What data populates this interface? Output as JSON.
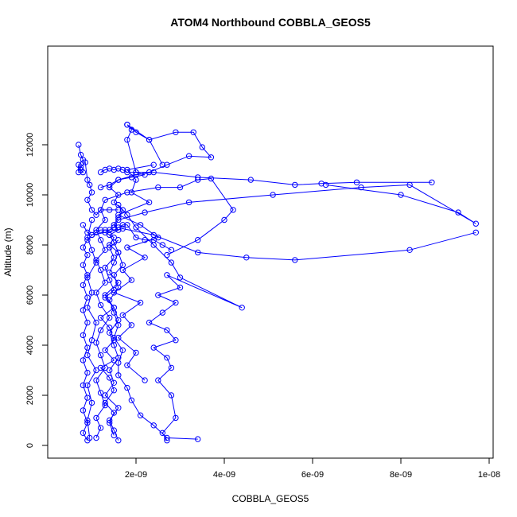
{
  "chart_data": {
    "type": "scatter",
    "title": "ATOM4 Northbound COBBLA_GEOS5",
    "xlabel": "COBBLA_GEOS5",
    "ylabel": "Altitude (m)",
    "xlim": [
      0,
      1e-08
    ],
    "ylim": [
      0,
      12800
    ],
    "x_ticks": [
      2e-09,
      4e-09,
      6e-09,
      8e-09,
      1e-08
    ],
    "x_tick_labels": [
      "2e-09",
      "4e-09",
      "6e-09",
      "8e-09",
      "1e-08"
    ],
    "y_ticks": [
      0,
      2000,
      4000,
      6000,
      8000,
      10000,
      12000
    ],
    "y_tick_labels": [
      "0",
      "2000",
      "4000",
      "6000",
      "8000",
      "10000",
      "12000"
    ],
    "grid": false,
    "legend": "none",
    "series_color": "#0000ff",
    "series": [
      {
        "x": [
          3.4e-09,
          2.7e-09,
          2.4e-09,
          2.1e-09,
          1.9e-09,
          1.8e-09,
          1.6e-09,
          1.6e-09,
          1.7e-09,
          1.5e-09,
          1.6e-09,
          1.5e-09,
          1.4e-09,
          1.6e-09,
          1.5e-09,
          1.7e-09,
          1.6e-09,
          1.5e-09,
          1.4e-09,
          1.6e-09,
          1.5e-09,
          1.6e-09,
          1.7e-09,
          1.5e-09,
          1.6e-09,
          1.4e-09,
          1.6e-09,
          2e-09,
          2.4e-09,
          3.4e-09,
          4.6e-09,
          5.6e-09,
          6.2e-09,
          7e-09,
          8.7e-09
        ],
        "y": [
          250,
          300,
          800,
          1200,
          1800,
          2300,
          2800,
          3300,
          3800,
          4300,
          4800,
          5300,
          5800,
          6300,
          6800,
          7200,
          7700,
          8100,
          8400,
          8600,
          8800,
          9100,
          9400,
          9700,
          10000,
          10300,
          10600,
          10800,
          10900,
          10700,
          10600,
          10400,
          10450,
          10500,
          10500
        ]
      },
      {
        "x": [
          1.6e-09,
          1.5e-09,
          1.4e-09,
          1.6e-09,
          1.3e-09,
          1.5e-09,
          1.4e-09,
          1.6e-09,
          1.5e-09,
          1.4e-09,
          1.6e-09,
          1.5e-09,
          1.3e-09,
          1.6e-09,
          1.4e-09,
          1.5e-09,
          1.6e-09,
          1.4e-09,
          1.5e-09,
          1.3e-09,
          1.5e-09,
          1.6e-09,
          2.2e-09,
          3.2e-09,
          5.1e-09,
          7.1e-09,
          8.2e-09,
          9.7e-09,
          9.3e-09,
          8e-09,
          6.3e-09
        ],
        "y": [
          200,
          600,
          1000,
          1500,
          2000,
          2500,
          3000,
          3500,
          4000,
          4500,
          5000,
          5500,
          6000,
          6500,
          6900,
          7300,
          7700,
          8000,
          8300,
          8500,
          8700,
          9000,
          9300,
          9700,
          10000,
          10300,
          10400,
          8850,
          9300,
          10000,
          10400
        ]
      },
      {
        "x": [
          9e-10,
          8e-10,
          9e-10,
          8e-10,
          9e-10,
          8e-10,
          9e-10,
          8e-10,
          9e-10,
          8e-10,
          9e-10,
          8e-10,
          9e-10,
          8e-10,
          9e-10,
          8e-10,
          9e-10,
          8e-10,
          9e-10,
          1e-09,
          1.3e-09,
          1.7e-09,
          2.4e-09,
          3.4e-09,
          4.5e-09,
          5.6e-09,
          8.2e-09,
          9.7e-09
        ],
        "y": [
          200,
          500,
          900,
          1400,
          1900,
          2400,
          2900,
          3400,
          3900,
          4400,
          4900,
          5400,
          5900,
          6400,
          6800,
          7200,
          7600,
          7900,
          8200,
          8400,
          8500,
          8650,
          8400,
          7700,
          7500,
          7400,
          7800,
          8500
        ]
      },
      {
        "x": [
          1.1e-09,
          1.2e-09,
          1.1e-09,
          1.3e-09,
          1.2e-09,
          1.1e-09,
          1.3e-09,
          1.2e-09,
          1.1e-09,
          1.2e-09,
          1.4e-09,
          1.2e-09,
          1.1e-09,
          1.3e-09,
          1.2e-09,
          1.1e-09,
          1.3e-09,
          1.2e-09,
          1.1e-09,
          1.3e-09,
          1.2e-09,
          1.3e-09,
          1.8e-09,
          2.5e-09,
          3e-09,
          3.4e-09,
          3.7e-09,
          4.2e-09,
          4e-09,
          3.4e-09,
          2.7e-09
        ],
        "y": [
          300,
          700,
          1100,
          1600,
          2100,
          2600,
          3100,
          3600,
          4100,
          4600,
          5100,
          5600,
          6100,
          6500,
          7000,
          7400,
          7800,
          8200,
          8600,
          9000,
          9400,
          9800,
          10100,
          10300,
          10300,
          10600,
          10650,
          9400,
          9000,
          8200,
          7600
        ]
      },
      {
        "x": [
          2.7e-09,
          2.6e-09,
          2.9e-09,
          2.8e-09,
          2.5e-09,
          2.8e-09,
          2.7e-09,
          2.4e-09,
          2.9e-09,
          2.7e-09,
          2.3e-09,
          2.6e-09,
          2.9e-09,
          2.5e-09,
          3e-09,
          2.7e-09,
          4.4e-09,
          3e-09,
          2.8e-09,
          2.4e-09,
          2e-09,
          1.8e-09,
          1.6e-09
        ],
        "y": [
          200,
          500,
          1100,
          2000,
          2600,
          3100,
          3500,
          3900,
          4200,
          4600,
          4900,
          5300,
          5700,
          6000,
          6300,
          6800,
          5500,
          6700,
          7300,
          8000,
          8700,
          9200,
          9600
        ]
      },
      {
        "x": [
          2.2e-09,
          1.8e-09,
          2e-09,
          1.6e-09,
          1.9e-09,
          1.7e-09,
          2.1e-09,
          1.5e-09,
          1.9e-09,
          1.7e-09,
          2.2e-09,
          1.8e-09,
          2.5e-09,
          2.1e-09,
          1.6e-09,
          2.3e-09,
          1.9e-09,
          2e-09,
          1.8e-09,
          2.4e-09
        ],
        "y": [
          2600,
          3200,
          3700,
          4300,
          4800,
          5200,
          5700,
          6100,
          6600,
          7000,
          7500,
          7900,
          8300,
          8800,
          9200,
          9700,
          10100,
          10600,
          11000,
          11200
        ]
      },
      {
        "x": [
          1.8e-09,
          2e-09,
          2.3e-09,
          2.9e-09,
          3.3e-09,
          3.5e-09,
          3.7e-09,
          3.2e-09,
          2.7e-09,
          2.3e-09,
          2e-09,
          1.8e-09,
          1.9e-09,
          1.8e-09,
          2.3e-09,
          2.6e-09
        ],
        "y": [
          12800,
          12500,
          12200,
          12500,
          12500,
          11900,
          11500,
          11550,
          11200,
          10900,
          10900,
          12200,
          12600,
          12800,
          12200,
          11200
        ]
      },
      {
        "x": [
          7e-10,
          7.5e-10,
          8e-10,
          7e-10,
          7.5e-10,
          8e-10,
          7e-10,
          7.5e-10,
          8.5e-10,
          9e-10,
          9.5e-10,
          1e-09,
          9e-10,
          1e-09,
          1.1e-09,
          1.2e-09,
          1.4e-09,
          1.6e-09
        ],
        "y": [
          12000,
          11600,
          11400,
          11200,
          11000,
          10900,
          10900,
          11100,
          11300,
          10600,
          10400,
          10100,
          9800,
          9400,
          9200,
          9400,
          9400,
          9400
        ]
      },
      {
        "x": [
          1.2e-09,
          1.3e-09,
          1.4e-09,
          1.5e-09,
          1.6e-09,
          1.7e-09,
          1.8e-09,
          2e-09,
          2.2e-09,
          1.9e-09,
          1.6e-09,
          1.4e-09,
          1.2e-09
        ],
        "y": [
          10900,
          11000,
          11050,
          11000,
          11050,
          11000,
          10900,
          10900,
          10800,
          10700,
          10600,
          10400,
          10300
        ]
      },
      {
        "x": [
          8e-10,
          9e-10,
          1e-09,
          1.1e-09,
          1.2e-09,
          1.3e-09,
          1.4e-09,
          1.5e-09,
          1.6e-09,
          1.7e-09,
          1.8e-09,
          2e-09,
          2.2e-09,
          2.4e-09,
          2.6e-09,
          2.8e-09
        ],
        "y": [
          8800,
          8500,
          8400,
          8500,
          8600,
          8600,
          8600,
          8700,
          8700,
          8800,
          8800,
          8300,
          8200,
          8200,
          8000,
          7800
        ]
      },
      {
        "x": [
          1.5e-09,
          1.4e-09,
          1.5e-09,
          1.3e-09,
          1.5e-09,
          1.4e-09,
          1.2e-09,
          1.5e-09,
          1.3e-09,
          1.5e-09,
          1.4e-09,
          1.2e-09,
          1.5e-09,
          1.3e-09,
          1.5e-09,
          1.4e-09,
          1.3e-09,
          1.5e-09,
          1.4e-09,
          1.6e-09
        ],
        "y": [
          400,
          900,
          1300,
          1700,
          2200,
          2700,
          3100,
          3400,
          3800,
          4200,
          4700,
          5100,
          5500,
          5900,
          6200,
          6600,
          7100,
          7500,
          7900,
          8200
        ]
      },
      {
        "x": [
          9.5e-10,
          9e-10,
          1e-09,
          9e-10,
          1.1e-09,
          9e-10,
          1e-09,
          1.1e-09,
          9e-10,
          1e-09,
          9e-10,
          1.1e-09,
          1e-09,
          9e-10,
          1e-09
        ],
        "y": [
          300,
          1000,
          1700,
          2400,
          3000,
          3600,
          4200,
          4900,
          5500,
          6100,
          6700,
          7300,
          7800,
          8300,
          9000
        ]
      }
    ]
  }
}
